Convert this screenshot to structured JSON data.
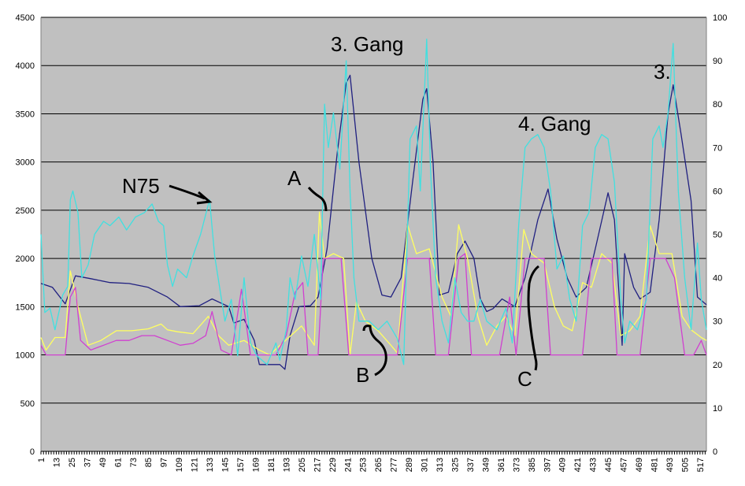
{
  "chart_data": {
    "type": "line",
    "title": "",
    "xlabel": "",
    "ylabel": "",
    "ylim_left": [
      0,
      4500
    ],
    "ylim_right": [
      0,
      100
    ],
    "x_range": [
      1,
      522
    ],
    "yticks_left": [
      "0",
      "500",
      "1000",
      "1500",
      "2000",
      "2500",
      "3000",
      "3500",
      "4000",
      "4500"
    ],
    "yticks_right": [
      "0",
      "10",
      "20",
      "30",
      "40",
      "50",
      "60",
      "70",
      "80",
      "90",
      "100"
    ],
    "xtick_labels": [
      "1",
      "13",
      "25",
      "37",
      "49",
      "61",
      "73",
      "85",
      "97",
      "109",
      "121",
      "133",
      "145",
      "157",
      "169",
      "181",
      "193",
      "205",
      "217",
      "229",
      "241",
      "253",
      "265",
      "277",
      "289",
      "301",
      "313",
      "325",
      "337",
      "349",
      "361",
      "373",
      "385",
      "397",
      "409",
      "421",
      "433",
      "445",
      "457",
      "469",
      "481",
      "493",
      "505",
      "517"
    ],
    "grid": true,
    "plot_background": "#c0c0c0",
    "series": [
      {
        "axis": "left",
        "color": "#202080",
        "points": [
          [
            1,
            1740
          ],
          [
            10,
            1700
          ],
          [
            20,
            1530
          ],
          [
            28,
            1820
          ],
          [
            40,
            1790
          ],
          [
            55,
            1750
          ],
          [
            70,
            1740
          ],
          [
            85,
            1700
          ],
          [
            100,
            1600
          ],
          [
            110,
            1500
          ],
          [
            125,
            1510
          ],
          [
            135,
            1580
          ],
          [
            148,
            1500
          ],
          [
            152,
            1330
          ],
          [
            160,
            1370
          ],
          [
            168,
            1150
          ],
          [
            172,
            900
          ],
          [
            180,
            900
          ],
          [
            188,
            900
          ],
          [
            192,
            850
          ],
          [
            196,
            1200
          ],
          [
            203,
            1500
          ],
          [
            212,
            1510
          ],
          [
            218,
            1600
          ],
          [
            225,
            2100
          ],
          [
            233,
            3100
          ],
          [
            240,
            3820
          ],
          [
            243,
            3900
          ],
          [
            250,
            3000
          ],
          [
            260,
            2000
          ],
          [
            268,
            1620
          ],
          [
            275,
            1600
          ],
          [
            283,
            1800
          ],
          [
            292,
            2800
          ],
          [
            300,
            3650
          ],
          [
            303,
            3760
          ],
          [
            308,
            3000
          ],
          [
            313,
            1620
          ],
          [
            320,
            1650
          ],
          [
            327,
            2050
          ],
          [
            333,
            2180
          ],
          [
            340,
            2000
          ],
          [
            345,
            1580
          ],
          [
            350,
            1450
          ],
          [
            355,
            1480
          ],
          [
            362,
            1580
          ],
          [
            372,
            1500
          ],
          [
            380,
            1800
          ],
          [
            390,
            2400
          ],
          [
            398,
            2720
          ],
          [
            405,
            2200
          ],
          [
            413,
            1800
          ],
          [
            420,
            1600
          ],
          [
            428,
            1700
          ],
          [
            435,
            2100
          ],
          [
            445,
            2680
          ],
          [
            450,
            2400
          ],
          [
            456,
            1100
          ],
          [
            458,
            2050
          ],
          [
            465,
            1700
          ],
          [
            470,
            1580
          ],
          [
            478,
            1650
          ],
          [
            485,
            2400
          ],
          [
            492,
            3500
          ],
          [
            496,
            3800
          ],
          [
            502,
            3300
          ],
          [
            510,
            2600
          ],
          [
            515,
            1600
          ],
          [
            522,
            1520
          ]
        ]
      },
      {
        "axis": "left",
        "color": "#ffff60",
        "points": [
          [
            1,
            1180
          ],
          [
            5,
            1050
          ],
          [
            12,
            1180
          ],
          [
            20,
            1180
          ],
          [
            24,
            1870
          ],
          [
            30,
            1500
          ],
          [
            38,
            1100
          ],
          [
            48,
            1150
          ],
          [
            60,
            1250
          ],
          [
            72,
            1250
          ],
          [
            85,
            1270
          ],
          [
            95,
            1320
          ],
          [
            100,
            1260
          ],
          [
            108,
            1240
          ],
          [
            120,
            1220
          ],
          [
            132,
            1400
          ],
          [
            140,
            1200
          ],
          [
            148,
            1100
          ],
          [
            160,
            1150
          ],
          [
            172,
            1050
          ],
          [
            180,
            1000
          ],
          [
            195,
            1180
          ],
          [
            205,
            1300
          ],
          [
            215,
            1100
          ],
          [
            219,
            2480
          ],
          [
            223,
            2000
          ],
          [
            230,
            2050
          ],
          [
            238,
            2000
          ],
          [
            243,
            1000
          ],
          [
            248,
            1550
          ],
          [
            255,
            1350
          ],
          [
            265,
            1250
          ],
          [
            275,
            1100
          ],
          [
            280,
            1020
          ],
          [
            288,
            2350
          ],
          [
            295,
            2050
          ],
          [
            305,
            2100
          ],
          [
            315,
            1600
          ],
          [
            322,
            1400
          ],
          [
            328,
            2350
          ],
          [
            335,
            2000
          ],
          [
            343,
            1400
          ],
          [
            350,
            1100
          ],
          [
            358,
            1300
          ],
          [
            365,
            1400
          ],
          [
            372,
            1200
          ],
          [
            379,
            2300
          ],
          [
            385,
            2050
          ],
          [
            395,
            1950
          ],
          [
            403,
            1500
          ],
          [
            410,
            1300
          ],
          [
            417,
            1250
          ],
          [
            425,
            1750
          ],
          [
            432,
            1700
          ],
          [
            440,
            2050
          ],
          [
            448,
            1950
          ],
          [
            455,
            1200
          ],
          [
            462,
            1250
          ],
          [
            470,
            1400
          ],
          [
            478,
            2340
          ],
          [
            485,
            2050
          ],
          [
            495,
            2050
          ],
          [
            503,
            1400
          ],
          [
            510,
            1260
          ],
          [
            518,
            1180
          ],
          [
            522,
            1150
          ]
        ]
      },
      {
        "axis": "left",
        "color": "#d040d0",
        "points": [
          [
            1,
            1100
          ],
          [
            5,
            1000
          ],
          [
            12,
            1000
          ],
          [
            20,
            1000
          ],
          [
            24,
            1600
          ],
          [
            28,
            1700
          ],
          [
            32,
            1150
          ],
          [
            40,
            1050
          ],
          [
            50,
            1100
          ],
          [
            60,
            1150
          ],
          [
            70,
            1150
          ],
          [
            80,
            1200
          ],
          [
            90,
            1200
          ],
          [
            100,
            1150
          ],
          [
            110,
            1100
          ],
          [
            120,
            1120
          ],
          [
            130,
            1200
          ],
          [
            135,
            1450
          ],
          [
            142,
            1050
          ],
          [
            150,
            1000
          ],
          [
            158,
            1680
          ],
          [
            165,
            1000
          ],
          [
            175,
            1000
          ],
          [
            185,
            1000
          ],
          [
            193,
            1200
          ],
          [
            200,
            1650
          ],
          [
            206,
            1750
          ],
          [
            210,
            1000
          ],
          [
            218,
            1000
          ],
          [
            222,
            2000
          ],
          [
            236,
            2000
          ],
          [
            242,
            1000
          ],
          [
            250,
            1000
          ],
          [
            260,
            1000
          ],
          [
            270,
            1000
          ],
          [
            280,
            1000
          ],
          [
            288,
            2000
          ],
          [
            305,
            2000
          ],
          [
            310,
            1000
          ],
          [
            320,
            1000
          ],
          [
            328,
            2000
          ],
          [
            333,
            2050
          ],
          [
            338,
            1000
          ],
          [
            350,
            1000
          ],
          [
            360,
            1000
          ],
          [
            368,
            1600
          ],
          [
            373,
            1000
          ],
          [
            380,
            2000
          ],
          [
            395,
            2000
          ],
          [
            400,
            1000
          ],
          [
            410,
            1000
          ],
          [
            425,
            1000
          ],
          [
            432,
            2000
          ],
          [
            448,
            2000
          ],
          [
            452,
            1000
          ],
          [
            460,
            1000
          ],
          [
            470,
            1000
          ],
          [
            478,
            2000
          ],
          [
            490,
            2000
          ],
          [
            497,
            1800
          ],
          [
            505,
            1000
          ],
          [
            512,
            1000
          ],
          [
            518,
            1150
          ],
          [
            522,
            1000
          ]
        ]
      },
      {
        "axis": "right",
        "color": "#40e0e0",
        "points": [
          [
            1,
            50
          ],
          [
            4,
            32
          ],
          [
            8,
            33
          ],
          [
            12,
            28
          ],
          [
            18,
            36
          ],
          [
            22,
            38
          ],
          [
            24,
            58
          ],
          [
            26,
            60
          ],
          [
            30,
            55
          ],
          [
            33,
            40
          ],
          [
            38,
            43
          ],
          [
            43,
            50
          ],
          [
            50,
            53
          ],
          [
            55,
            52
          ],
          [
            62,
            54
          ],
          [
            68,
            51
          ],
          [
            75,
            54
          ],
          [
            82,
            55
          ],
          [
            88,
            57
          ],
          [
            93,
            53
          ],
          [
            97,
            52
          ],
          [
            100,
            43
          ],
          [
            104,
            38
          ],
          [
            108,
            42
          ],
          [
            115,
            40
          ],
          [
            120,
            45
          ],
          [
            126,
            50
          ],
          [
            133,
            58
          ],
          [
            137,
            45
          ],
          [
            145,
            30
          ],
          [
            150,
            35
          ],
          [
            155,
            22
          ],
          [
            160,
            40
          ],
          [
            165,
            25
          ],
          [
            170,
            22
          ],
          [
            178,
            20
          ],
          [
            185,
            25
          ],
          [
            188,
            21
          ],
          [
            193,
            28
          ],
          [
            196,
            40
          ],
          [
            200,
            35
          ],
          [
            205,
            45
          ],
          [
            210,
            38
          ],
          [
            215,
            50
          ],
          [
            220,
            35
          ],
          [
            223,
            80
          ],
          [
            226,
            70
          ],
          [
            230,
            78
          ],
          [
            235,
            65
          ],
          [
            240,
            90
          ],
          [
            243,
            60
          ],
          [
            246,
            40
          ],
          [
            250,
            30
          ],
          [
            258,
            30
          ],
          [
            265,
            28
          ],
          [
            272,
            30
          ],
          [
            280,
            26
          ],
          [
            285,
            20
          ],
          [
            290,
            72
          ],
          [
            295,
            75
          ],
          [
            298,
            60
          ],
          [
            303,
            95
          ],
          [
            306,
            65
          ],
          [
            310,
            40
          ],
          [
            315,
            30
          ],
          [
            320,
            25
          ],
          [
            325,
            40
          ],
          [
            330,
            32
          ],
          [
            335,
            30
          ],
          [
            340,
            30
          ],
          [
            345,
            35
          ],
          [
            350,
            30
          ],
          [
            358,
            28
          ],
          [
            365,
            33
          ],
          [
            370,
            25
          ],
          [
            375,
            52
          ],
          [
            380,
            70
          ],
          [
            385,
            72
          ],
          [
            390,
            73
          ],
          [
            395,
            70
          ],
          [
            400,
            60
          ],
          [
            405,
            42
          ],
          [
            410,
            45
          ],
          [
            415,
            35
          ],
          [
            420,
            30
          ],
          [
            425,
            52
          ],
          [
            430,
            55
          ],
          [
            435,
            70
          ],
          [
            440,
            73
          ],
          [
            445,
            72
          ],
          [
            450,
            62
          ],
          [
            455,
            35
          ],
          [
            458,
            25
          ],
          [
            462,
            30
          ],
          [
            468,
            28
          ],
          [
            475,
            35
          ],
          [
            480,
            72
          ],
          [
            485,
            75
          ],
          [
            488,
            70
          ],
          [
            492,
            78
          ],
          [
            496,
            94
          ],
          [
            500,
            60
          ],
          [
            505,
            40
          ],
          [
            510,
            28
          ],
          [
            515,
            48
          ],
          [
            518,
            35
          ],
          [
            522,
            28
          ]
        ]
      }
    ],
    "annotations": [
      {
        "text": "3. Gang"
      },
      {
        "text": "3."
      },
      {
        "text": "4. Gang"
      },
      {
        "text": "N75"
      },
      {
        "text": "A"
      },
      {
        "text": "B"
      },
      {
        "text": "C"
      }
    ]
  }
}
